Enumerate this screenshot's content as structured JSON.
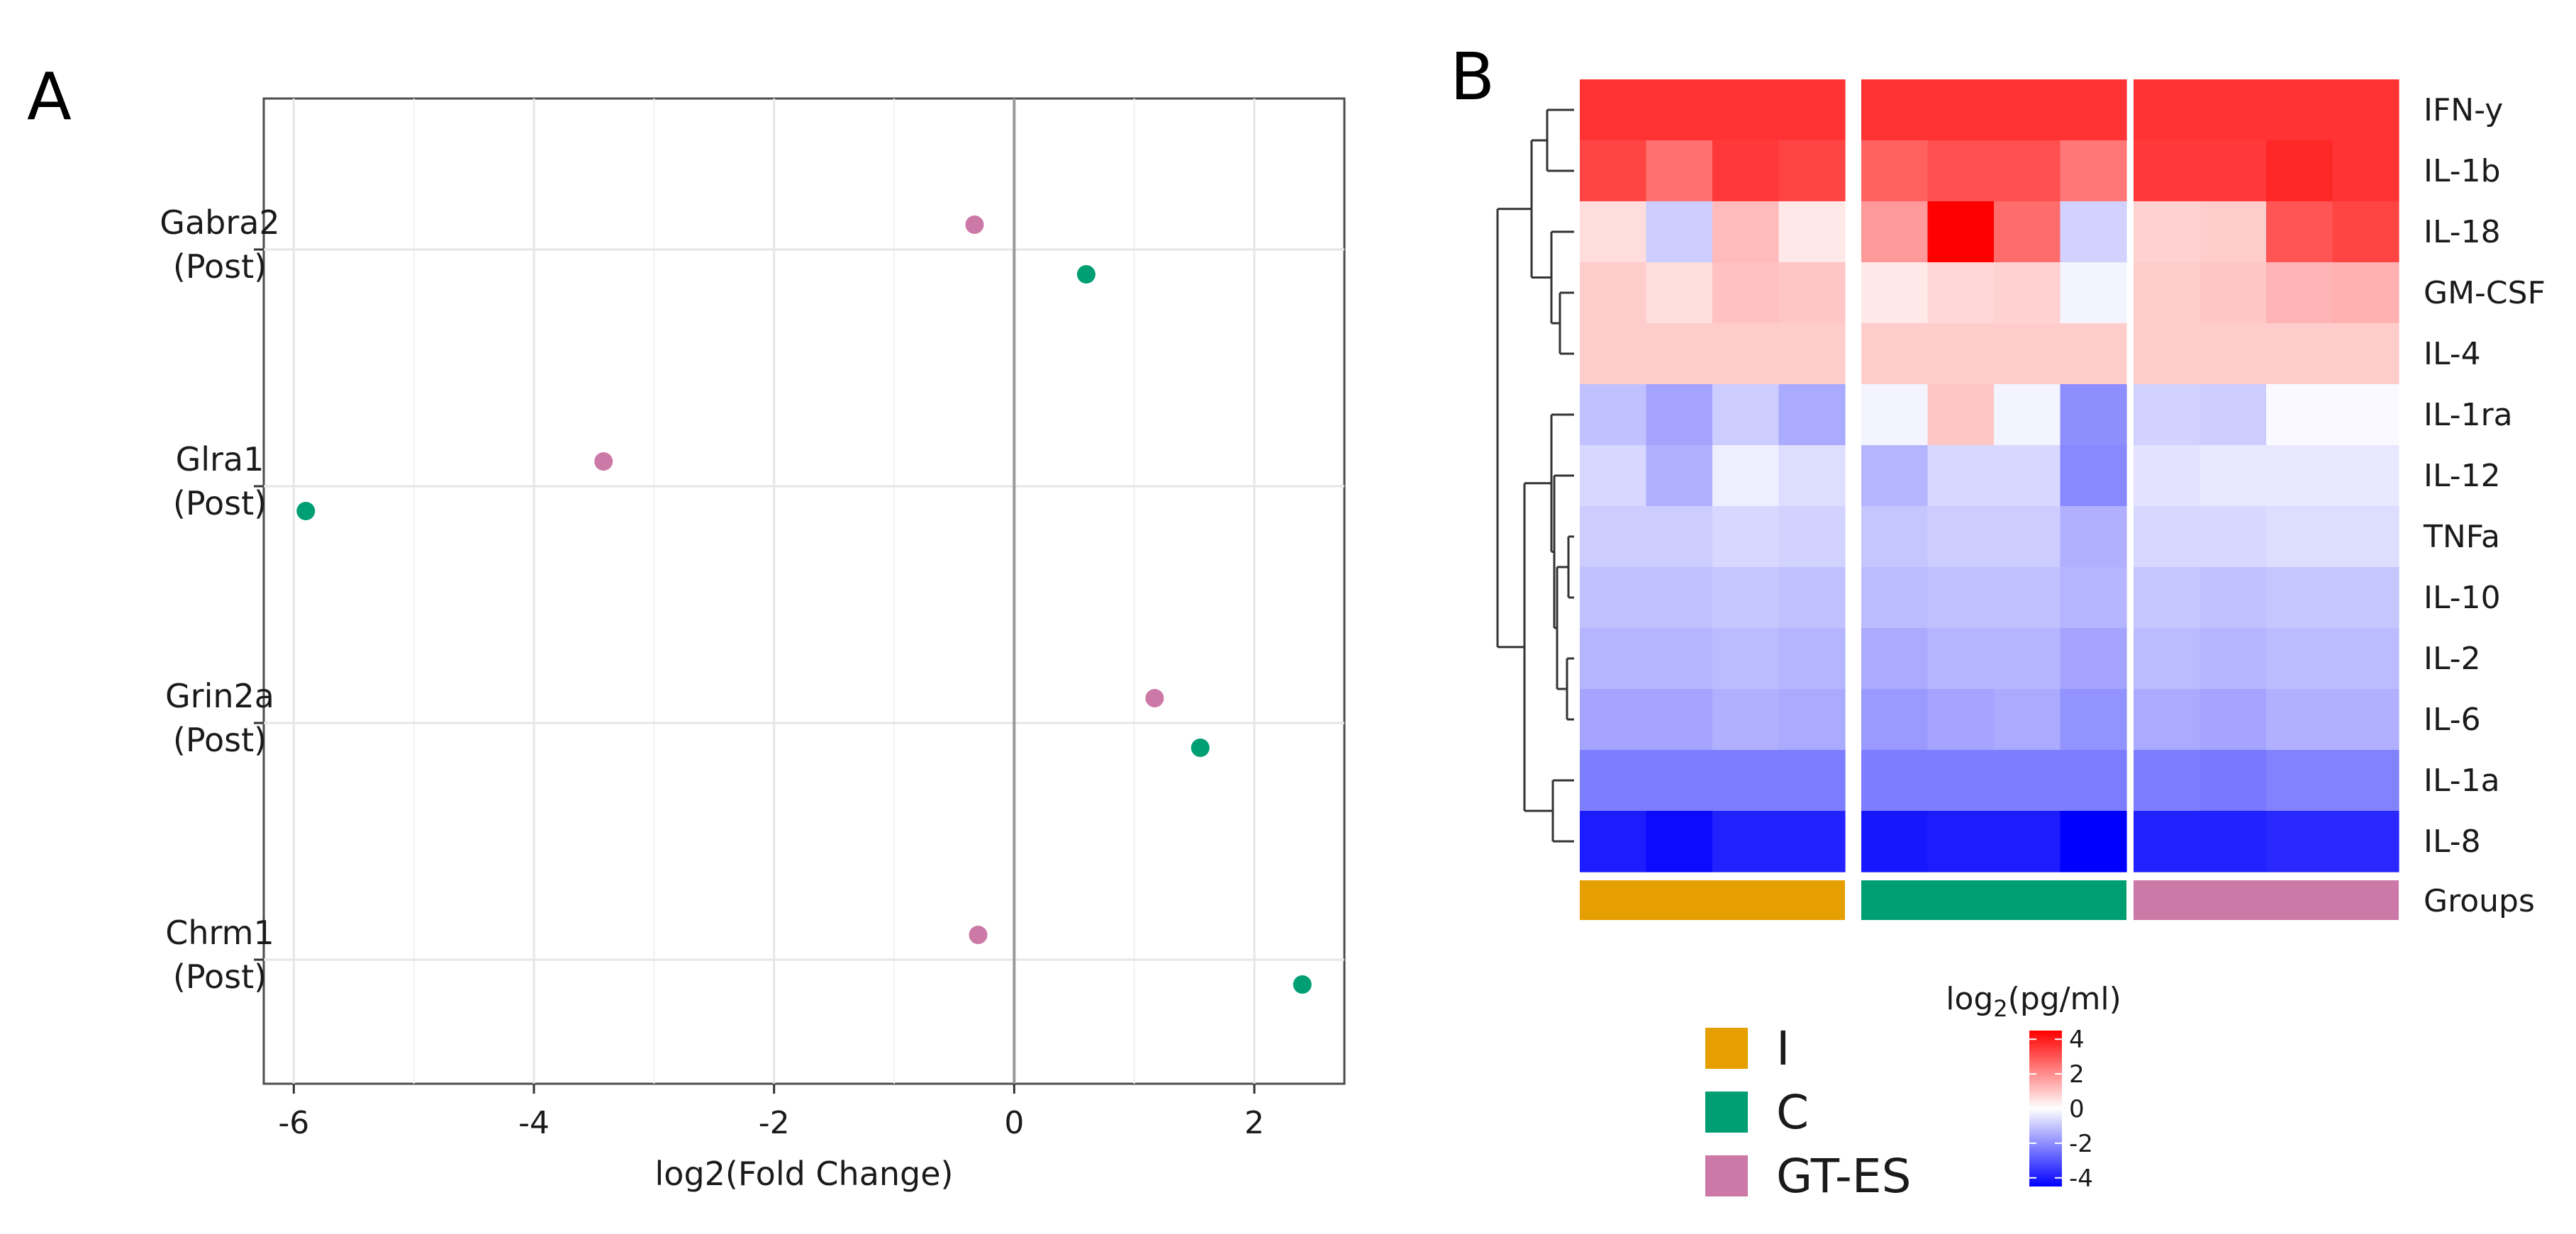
{
  "chart_data": [
    {
      "panel": "A",
      "type": "scatter",
      "xlabel": "log2(Fold Change)",
      "ylabel": "",
      "xlim": [
        -6.25,
        2.75
      ],
      "x_ticks": [
        "-6",
        "-4",
        "-2",
        "0",
        "2"
      ],
      "x_tick_values": [
        -6,
        -4,
        -2,
        0,
        2
      ],
      "vertical_reference_line": 0,
      "categories": [
        [
          "Gabra2",
          "(Post)"
        ],
        [
          "Glra1",
          "(Post)"
        ],
        [
          "Grin2a",
          "(Post)"
        ],
        [
          "Chrm1",
          "(Post)"
        ]
      ],
      "colors": {
        "pink": "#cc79a7",
        "green": "#009e73"
      },
      "series": [
        {
          "color": "#cc79a7",
          "values": [
            -0.33,
            -3.42,
            1.17,
            -0.3
          ]
        },
        {
          "color": "#009e73",
          "values": [
            0.6,
            -5.9,
            1.55,
            2.4
          ]
        }
      ],
      "grid": true
    },
    {
      "panel": "B",
      "type": "heatmap",
      "rows": [
        "IFN-y",
        "IL-1b",
        "IL-18",
        "GM-CSF",
        "IL-4",
        "IL-1ra",
        "IL-12",
        "TNFa",
        "IL-10",
        "IL-2",
        "IL-6",
        "IL-1a",
        "IL-8"
      ],
      "group_row_label": "Groups",
      "columns_per_group": 4,
      "values": [
        [
          3.6,
          3.6,
          3.6,
          3.6,
          3.6,
          3.6,
          3.6,
          3.6,
          3.6,
          3.6,
          3.6,
          3.6
        ],
        [
          3.3,
          2.5,
          3.5,
          3.3,
          2.8,
          3.1,
          3.1,
          2.4,
          3.5,
          3.5,
          3.8,
          3.6
        ],
        [
          0.6,
          -0.9,
          1.2,
          0.4,
          1.8,
          4.5,
          2.6,
          -0.8,
          0.8,
          0.9,
          3.0,
          3.3
        ],
        [
          0.9,
          0.6,
          1.1,
          1.0,
          0.4,
          0.7,
          0.8,
          -0.2,
          0.9,
          1.0,
          1.3,
          1.4
        ],
        [
          0.9,
          0.9,
          0.9,
          0.9,
          0.9,
          0.9,
          0.9,
          0.9,
          0.9,
          0.9,
          0.9,
          0.9
        ],
        [
          -1.1,
          -1.6,
          -0.9,
          -1.5,
          -0.2,
          1.0,
          -0.2,
          -2.0,
          -0.8,
          -0.9,
          -0.1,
          -0.1
        ],
        [
          -0.7,
          -1.4,
          -0.3,
          -0.6,
          -1.3,
          -0.7,
          -0.7,
          -2.1,
          -0.5,
          -0.4,
          -0.4,
          -0.4
        ],
        [
          -0.9,
          -0.9,
          -0.7,
          -0.8,
          -1.0,
          -0.9,
          -0.9,
          -1.4,
          -0.7,
          -0.7,
          -0.6,
          -0.6
        ],
        [
          -1.1,
          -1.1,
          -1.0,
          -1.1,
          -1.2,
          -1.1,
          -1.1,
          -1.3,
          -1.0,
          -1.1,
          -1.0,
          -1.0
        ],
        [
          -1.3,
          -1.3,
          -1.2,
          -1.3,
          -1.5,
          -1.3,
          -1.3,
          -1.6,
          -1.2,
          -1.3,
          -1.2,
          -1.2
        ],
        [
          -1.6,
          -1.6,
          -1.4,
          -1.5,
          -1.8,
          -1.6,
          -1.5,
          -1.9,
          -1.5,
          -1.6,
          -1.4,
          -1.4
        ],
        [
          -2.3,
          -2.3,
          -2.3,
          -2.3,
          -2.3,
          -2.3,
          -2.3,
          -2.3,
          -2.3,
          -2.4,
          -2.2,
          -2.2
        ],
        [
          -4.0,
          -4.3,
          -3.9,
          -3.9,
          -4.1,
          -4.0,
          -4.0,
          -4.6,
          -3.9,
          -3.9,
          -3.8,
          -3.8
        ]
      ],
      "groups": [
        {
          "label": "I",
          "color": "#e69f00"
        },
        {
          "label": "C",
          "color": "#009e73"
        },
        {
          "label": "GT-ES",
          "color": "#cc79a7"
        }
      ],
      "colorbar": {
        "title_base": "log",
        "title_sub": "2",
        "title_rest": "(pg/ml)",
        "ticks": [
          "4",
          "2",
          "0",
          "-2",
          "-4"
        ],
        "tick_values": [
          4,
          2,
          0,
          -2,
          -4
        ],
        "range": [
          -4.5,
          4.5
        ],
        "low_color": "#0000ff",
        "mid_color": "#ffffff",
        "high_color": "#ff0000"
      },
      "dendrogram": "left"
    }
  ],
  "panels": {
    "a": "A",
    "b": "B"
  }
}
